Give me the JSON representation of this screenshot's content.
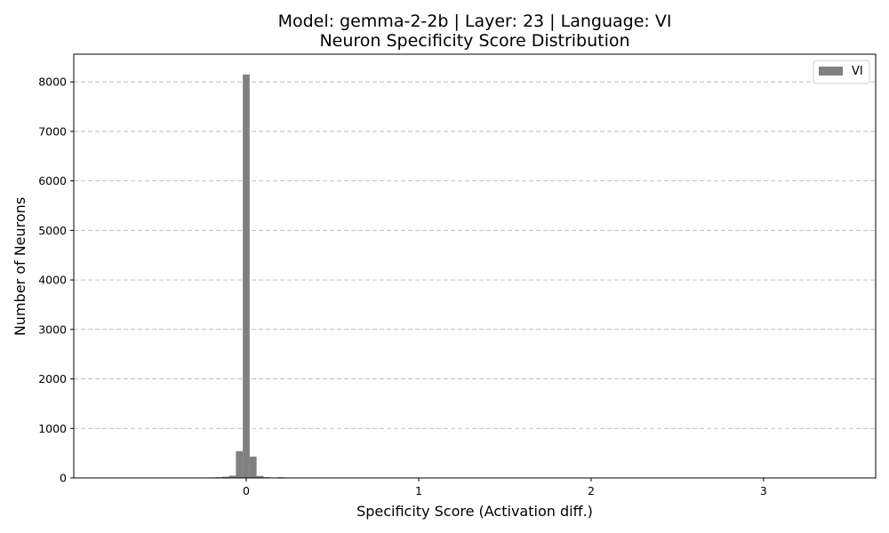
{
  "chart_data": {
    "type": "bar",
    "title_line1": "Model: gemma-2-2b | Layer: 23 | Language: VI",
    "title_line2": "Neuron Specificity Score Distribution",
    "xlabel": "Specificity Score (Activation diff.)",
    "ylabel": "Number of Neurons",
    "xlim": [
      -1.0,
      3.65
    ],
    "ylim": [
      0,
      8560
    ],
    "xticks": [
      0,
      1,
      2,
      3
    ],
    "yticks": [
      0,
      1000,
      2000,
      3000,
      4000,
      5000,
      6000,
      7000,
      8000
    ],
    "grid": "y-dashed",
    "legend_position": "top-right",
    "bin_width": 0.04,
    "series": [
      {
        "name": "VI",
        "color": "#808080",
        "bins": [
          {
            "x": -0.2,
            "value": 10
          },
          {
            "x": -0.16,
            "value": 15
          },
          {
            "x": -0.12,
            "value": 25
          },
          {
            "x": -0.08,
            "value": 45
          },
          {
            "x": -0.04,
            "value": 540
          },
          {
            "x": 0.0,
            "value": 8150
          },
          {
            "x": 0.04,
            "value": 430
          },
          {
            "x": 0.08,
            "value": 40
          },
          {
            "x": 0.12,
            "value": 15
          },
          {
            "x": 0.16,
            "value": 5
          },
          {
            "x": 0.2,
            "value": 15
          }
        ]
      }
    ]
  }
}
